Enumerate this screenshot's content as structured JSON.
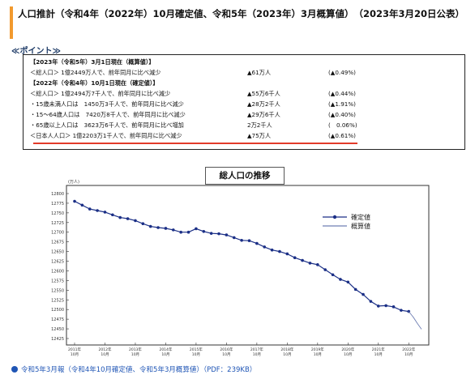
{
  "title": "人口推計（令和4年（2022年）10月確定値、令和5年（2023年）3月概算値）　（2023年3月20日公表）",
  "points_heading": "≪ポイント≫",
  "points_rows": [
    {
      "c1": "【2023年（令和5年）3月1日現在（概算値）】",
      "c2": "",
      "c3": "",
      "bold": true
    },
    {
      "c1": "＜総人口＞ 1億2449万人で、前年同月に比べ減少",
      "c2": "▲61万人",
      "c3": "(▲0.49%)",
      "bold": false
    },
    {
      "c1": "【2022年（令和4年）10月1日現在（確定値）】",
      "c2": "",
      "c3": "",
      "bold": true
    },
    {
      "c1": "＜総人口＞ 1億2494万7千人で、前年同月に比べ減少",
      "c2": "▲55万6千人",
      "c3": "(▲0.44%)",
      "bold": false
    },
    {
      "c1": "・15歳未満人口は　1450万3千人で、前年同月に比べ減少",
      "c2": "▲28万2千人",
      "c3": "(▲1.91%)",
      "bold": false
    },
    {
      "c1": "・15～64歳人口は　7420万8千人で、前年同月に比べ減少",
      "c2": "▲29万6千人",
      "c3": "(▲0.40%)",
      "bold": false
    },
    {
      "c1": "・65歳以上人口は　3623万6千人で、前年同月に比べ増加",
      "c2": "2万2千人",
      "c3": "(　0.06%)",
      "bold": false
    },
    {
      "c1": "＜日本人人口＞ 1億2203万1千人で、前年同月に比べ減少",
      "c2": "▲75万人",
      "c3": "(▲0.61%)",
      "bold": false
    }
  ],
  "chart_data": {
    "type": "line",
    "title": "総人口の推移",
    "ylabel": "(万人)",
    "ylim": [
      12425,
      12800
    ],
    "yticks": [
      "12800",
      "12775",
      "12750",
      "12725",
      "12700",
      "12675",
      "12650",
      "12625",
      "12600",
      "12575",
      "12550",
      "12525",
      "12500",
      "12475",
      "12450",
      "12425"
    ],
    "xticks": [
      {
        "year": "2011年",
        "month": "10月"
      },
      {
        "year": "2012年",
        "month": "10月"
      },
      {
        "year": "2013年",
        "month": "10月"
      },
      {
        "year": "2014年",
        "month": "10月"
      },
      {
        "year": "2015年",
        "month": "10月"
      },
      {
        "year": "2016年",
        "month": "10月"
      },
      {
        "year": "2017年",
        "month": "10月"
      },
      {
        "year": "2018年",
        "month": "10月"
      },
      {
        "year": "2019年",
        "month": "10月"
      },
      {
        "year": "2020年",
        "month": "10月"
      },
      {
        "year": "2021年",
        "month": "10月"
      },
      {
        "year": "2022年",
        "month": "10月"
      }
    ],
    "legend": [
      "確定値",
      "概算値"
    ],
    "legend_position": "top-right",
    "series": [
      {
        "name": "確定値",
        "color": "#1b2f86",
        "marker": true,
        "x": [
          2011.75,
          2012.0,
          2012.25,
          2012.5,
          2012.75,
          2013.0,
          2013.25,
          2013.5,
          2013.75,
          2014.0,
          2014.25,
          2014.5,
          2014.75,
          2015.0,
          2015.25,
          2015.5,
          2015.75,
          2016.0,
          2016.25,
          2016.5,
          2016.75,
          2017.0,
          2017.25,
          2017.5,
          2017.75,
          2018.0,
          2018.25,
          2018.5,
          2018.75,
          2019.0,
          2019.25,
          2019.5,
          2019.75,
          2020.0,
          2020.25,
          2020.5,
          2020.75,
          2021.0,
          2021.25,
          2021.5,
          2021.75,
          2022.0,
          2022.25,
          2022.5,
          2022.75
        ],
        "y": [
          12780,
          12770,
          12760,
          12756,
          12752,
          12745,
          12738,
          12735,
          12730,
          12722,
          12715,
          12712,
          12710,
          12706,
          12700,
          12700,
          12709,
          12702,
          12697,
          12696,
          12693,
          12686,
          12679,
          12678,
          12671,
          12662,
          12654,
          12650,
          12644,
          12634,
          12627,
          12620,
          12616,
          12603,
          12590,
          12578,
          12571,
          12552,
          12539,
          12521,
          12509,
          12510,
          12507,
          12498,
          12495
        ]
      },
      {
        "name": "概算値",
        "color": "#6f7fb3",
        "marker": false,
        "x": [
          2022.75,
          2022.9,
          2023.05,
          2023.17
        ],
        "y": [
          12495,
          12480,
          12462,
          12449
        ]
      }
    ]
  },
  "link_text": "令和5年3月報（令和4年10月確定値、令和5年3月概算値）（PDF：239KB）"
}
